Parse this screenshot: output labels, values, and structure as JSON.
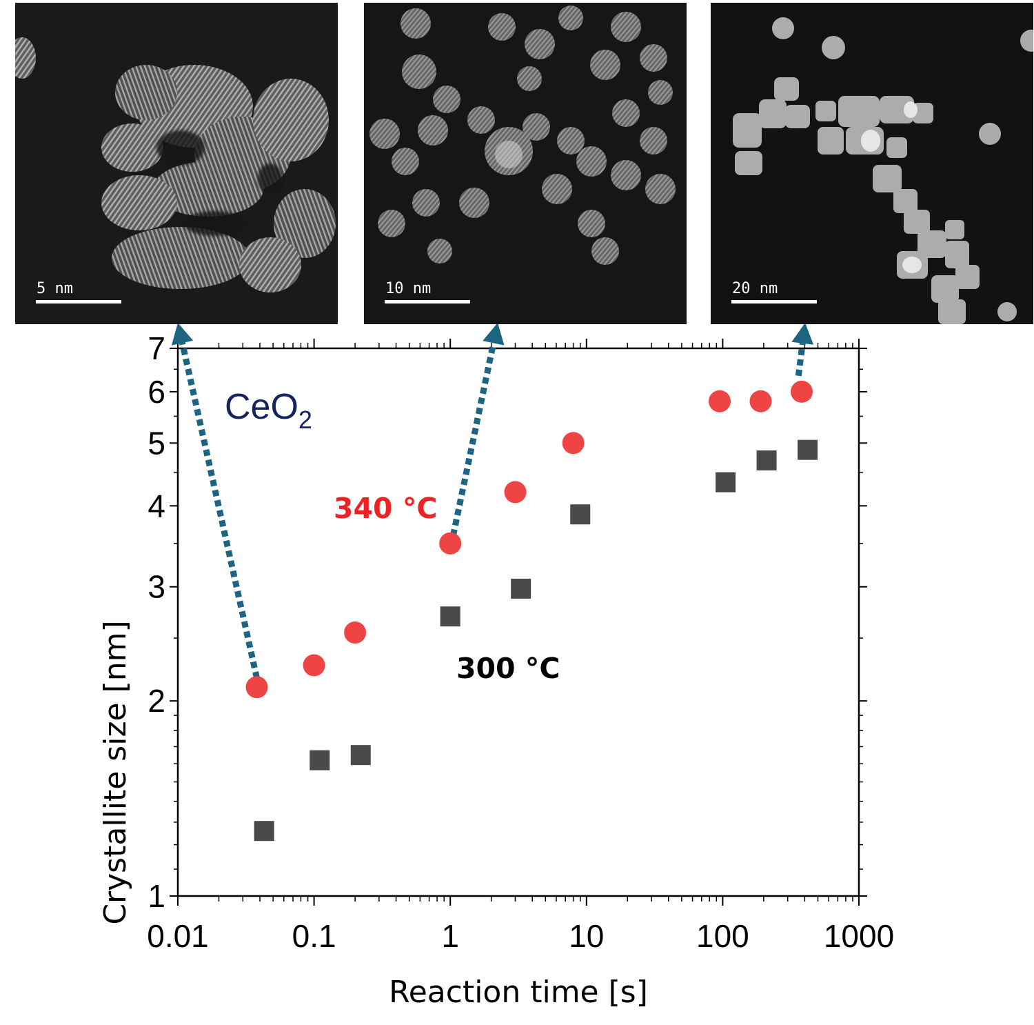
{
  "micrographs": [
    {
      "scale": "5 nm"
    },
    {
      "scale": "10 nm"
    },
    {
      "scale": "20 nm"
    }
  ],
  "colors": {
    "series_340": "#ee4444",
    "series_300": "#4a4a4a",
    "arrow": "#1c6482",
    "compound": "#13245e"
  },
  "chart_data": {
    "type": "scatter",
    "compound": "CeO",
    "compound_subscript": "2",
    "xlabel": "Reaction time [s]",
    "ylabel": "Crystallite size [nm]",
    "xscale": "log",
    "yscale": "log",
    "xlim": [
      0.01,
      1000
    ],
    "ylim": [
      1,
      7
    ],
    "xticks": [
      "0.01",
      "0.1",
      "1",
      "10",
      "100",
      "1000"
    ],
    "yticks": [
      "1",
      "2",
      "3",
      "4",
      "5",
      "6",
      "7"
    ],
    "grid": false,
    "series": [
      {
        "name": "340 °C",
        "marker": "circle",
        "x": [
          0.038,
          0.1,
          0.2,
          1.0,
          3.0,
          8.0,
          95,
          190,
          380
        ],
        "y": [
          2.1,
          2.27,
          2.55,
          3.5,
          4.2,
          5.0,
          5.8,
          5.8,
          6.0
        ]
      },
      {
        "name": "300 °C",
        "marker": "square",
        "x": [
          0.043,
          0.11,
          0.22,
          1.0,
          3.3,
          9.0,
          105,
          210,
          420
        ],
        "y": [
          1.26,
          1.62,
          1.65,
          2.7,
          2.98,
          3.88,
          4.35,
          4.7,
          4.88
        ]
      }
    ],
    "arrows": [
      {
        "from": [
          0.038,
          2.17
        ]
      },
      {
        "from": [
          1.05,
          3.6
        ]
      },
      {
        "from": [
          360,
          6.35
        ]
      }
    ]
  }
}
